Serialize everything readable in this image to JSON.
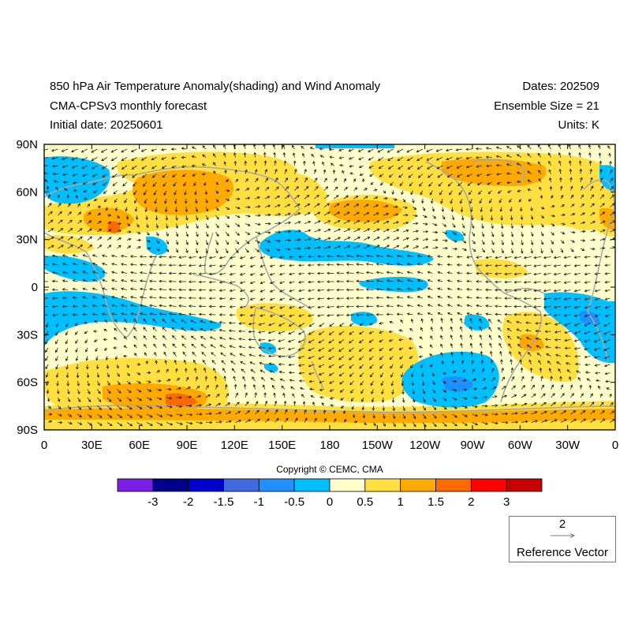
{
  "header": {
    "title_line1": "850 hPa Air Temperature Anomaly(shading) and Wind Anomaly",
    "title_line2": "CMA-CPSv3 monthly forecast",
    "title_line3": "Initial date: 20250601",
    "right_line1": "Dates: 202509",
    "right_line2": "Ensemble Size = 21",
    "right_line3": "Units: K"
  },
  "axes": {
    "x_ticks": [
      "0",
      "30E",
      "60E",
      "90E",
      "120E",
      "150E",
      "180",
      "150W",
      "120W",
      "90W",
      "60W",
      "30W",
      "0"
    ],
    "y_ticks": [
      "90N",
      "60N",
      "30N",
      "0",
      "30S",
      "60S",
      "90S"
    ]
  },
  "copyright": "Copyright © CEMC, CMA",
  "colorbar": {
    "labels": [
      "-3",
      "-2",
      "-1.5",
      "-1",
      "-0.5",
      "0",
      "0.5",
      "1",
      "1.5",
      "2",
      "3"
    ],
    "colors": [
      "#7b1fe6",
      "#00008c",
      "#0000cc",
      "#4169e1",
      "#1e90ff",
      "#00bfff",
      "#ffffcc",
      "#ffe040",
      "#ffaa00",
      "#ff6a00",
      "#ff0000",
      "#c80000"
    ]
  },
  "reference_vector": {
    "magnitude": "2",
    "label": "Reference Vector"
  },
  "colors": {
    "land_outline": "#a8a8a8",
    "vector": "#222222",
    "base_shading": "#ffffcc"
  }
}
